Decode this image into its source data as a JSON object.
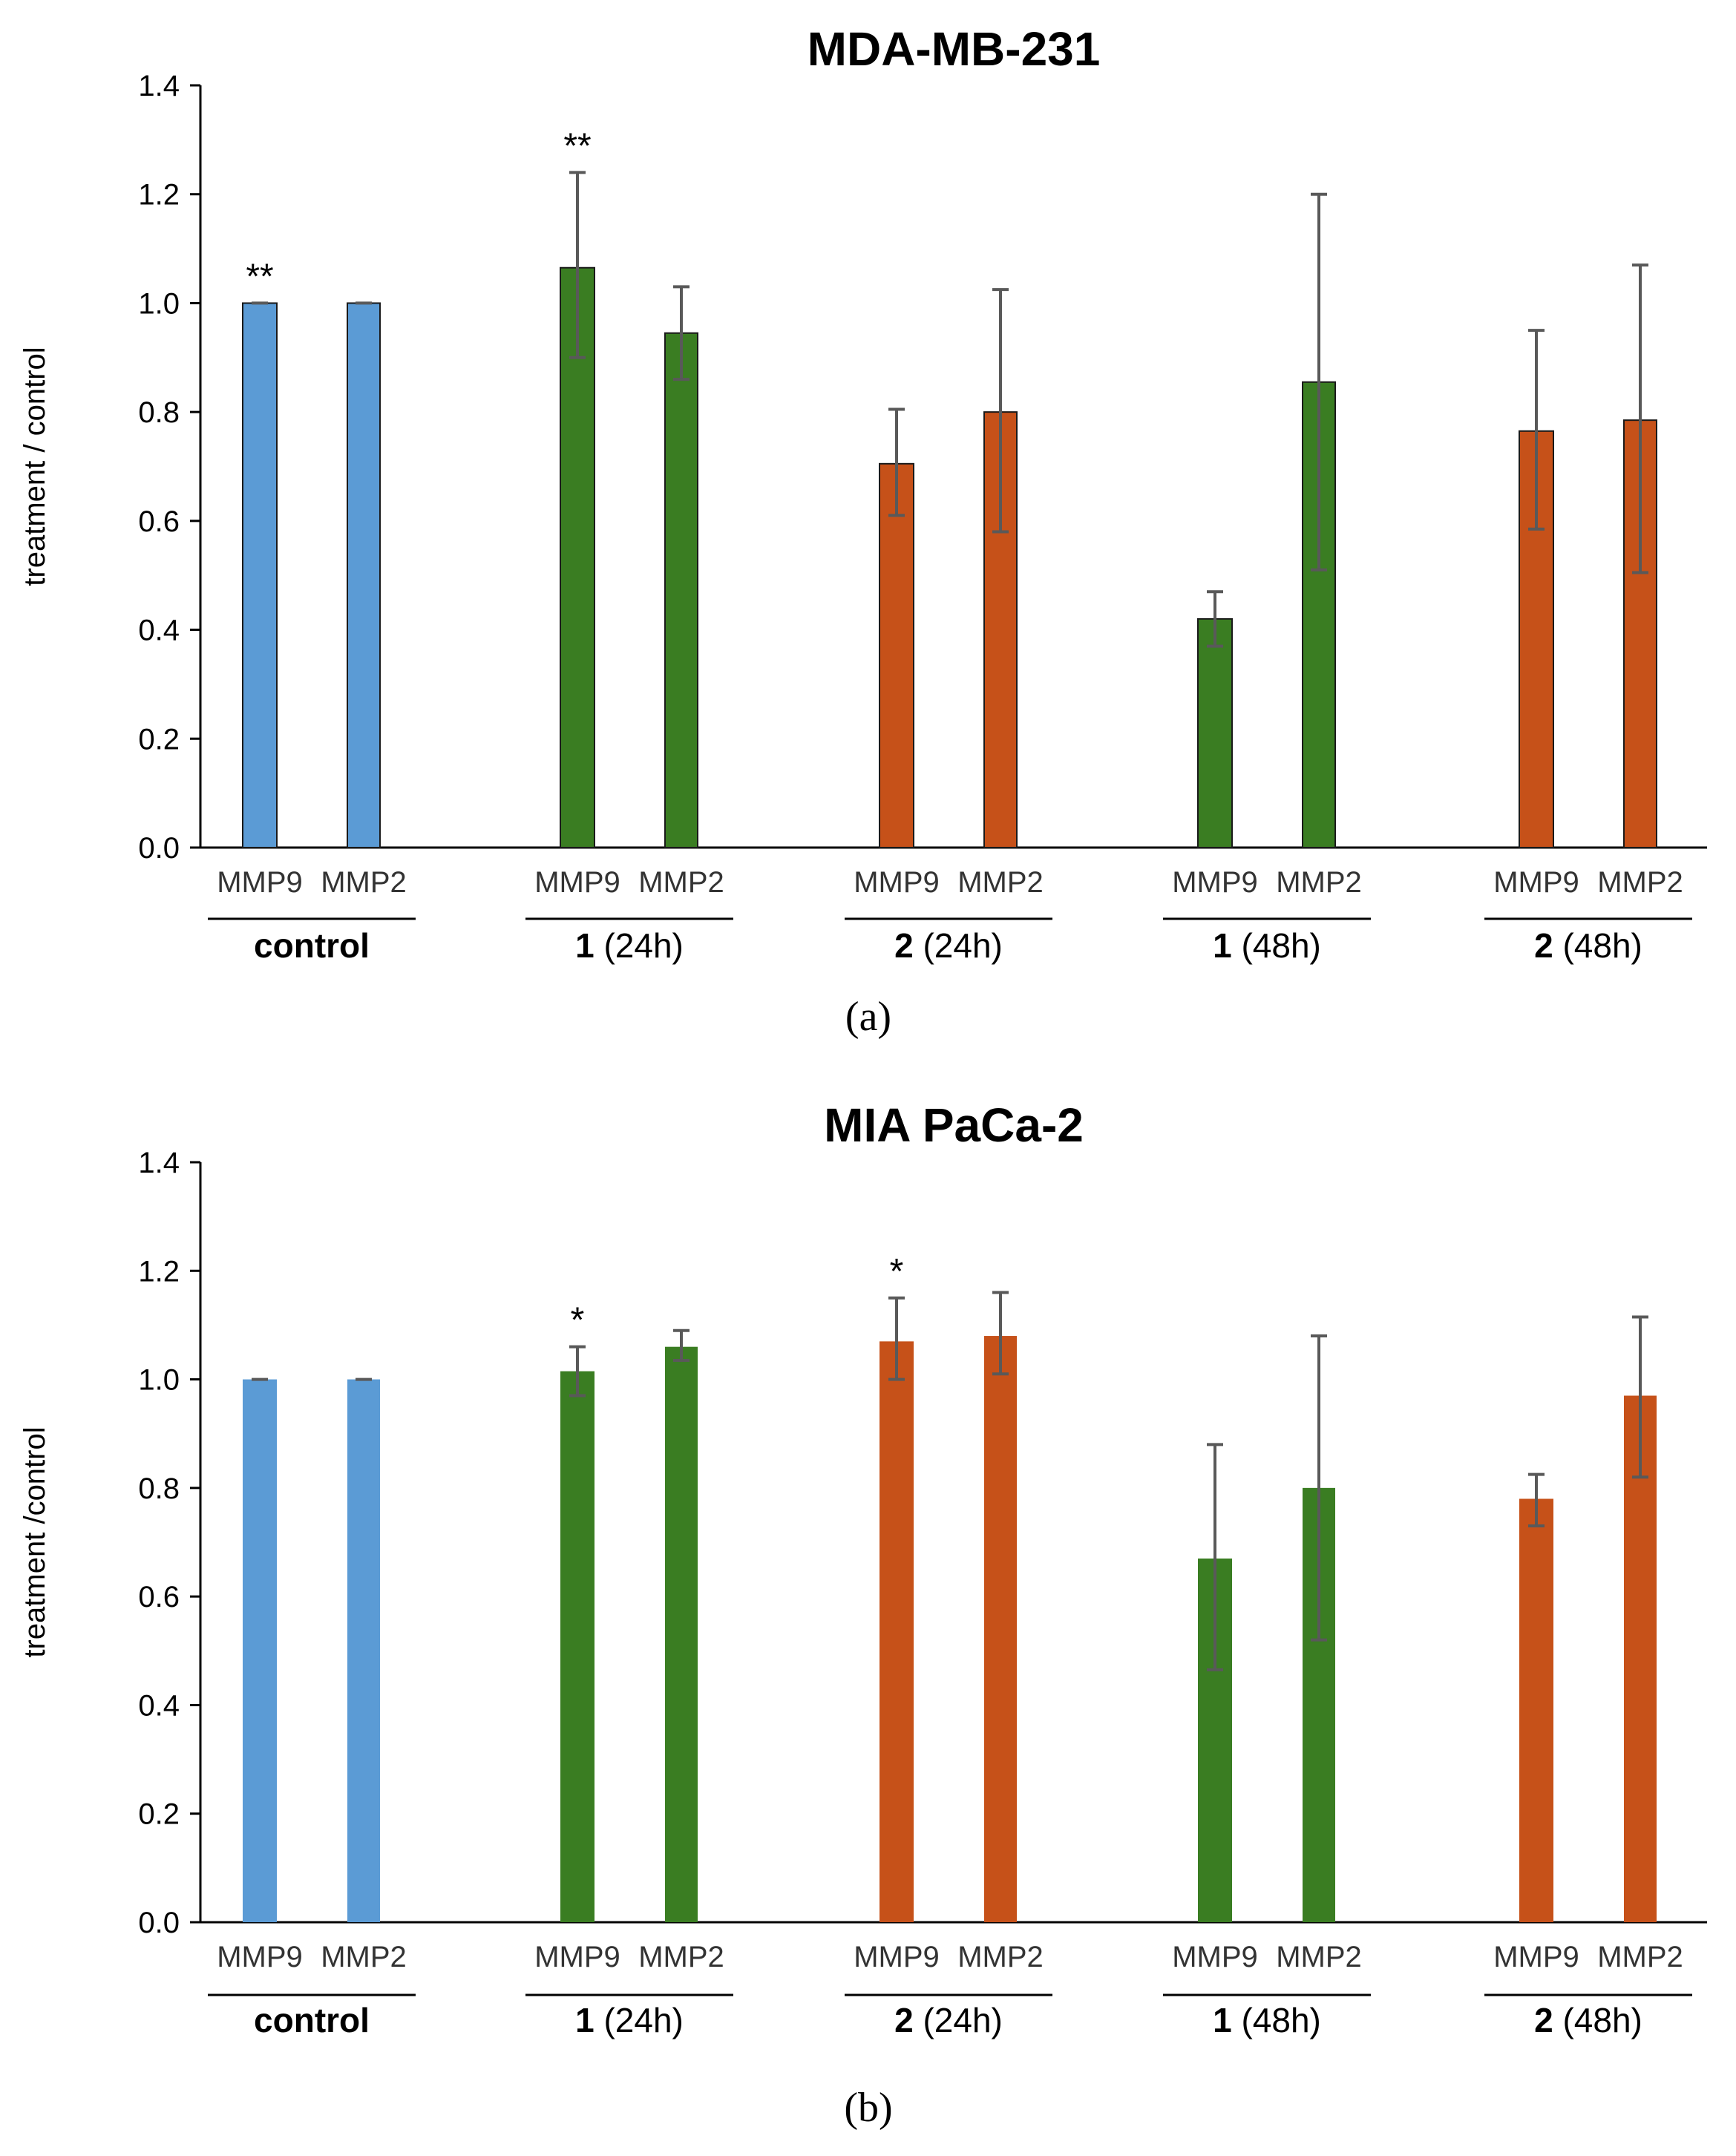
{
  "colors": {
    "control": "#5B9BD5",
    "compound1": "#3A7D22",
    "compound2": "#C65119",
    "error": "#595959",
    "axis": "#000000",
    "bar_outline": "#1a1a1a"
  },
  "chart_data": [
    {
      "type": "bar",
      "panel_label": "(a)",
      "title": "MDA-MB-231",
      "ylabel": "treatment / control",
      "ylim": [
        0,
        1.4
      ],
      "yticks": [
        "0.0",
        "0.2",
        "0.4",
        "0.6",
        "0.8",
        "1.0",
        "1.2",
        "1.4"
      ],
      "bars_outlined": true,
      "groups": [
        {
          "label_bold": "control",
          "label_rest": "",
          "color": "control",
          "bars": [
            {
              "label": "MMP9",
              "value": 1.0,
              "err_low": 1.0,
              "err_high": 1.0,
              "annotation": "**"
            },
            {
              "label": "MMP2",
              "value": 1.0,
              "err_low": 1.0,
              "err_high": 1.0,
              "annotation": ""
            }
          ]
        },
        {
          "label_bold": "1",
          "label_rest": " (24h)",
          "color": "compound1",
          "bars": [
            {
              "label": "MMP9",
              "value": 1.065,
              "err_low": 0.9,
              "err_high": 1.24,
              "annotation": "**"
            },
            {
              "label": "MMP2",
              "value": 0.945,
              "err_low": 0.86,
              "err_high": 1.03,
              "annotation": ""
            }
          ]
        },
        {
          "label_bold": "2",
          "label_rest": " (24h)",
          "color": "compound2",
          "bars": [
            {
              "label": "MMP9",
              "value": 0.705,
              "err_low": 0.61,
              "err_high": 0.805,
              "annotation": ""
            },
            {
              "label": "MMP2",
              "value": 0.8,
              "err_low": 0.58,
              "err_high": 1.025,
              "annotation": ""
            }
          ]
        },
        {
          "label_bold": "1",
          "label_rest": " (48h)",
          "color": "compound1",
          "bars": [
            {
              "label": "MMP9",
              "value": 0.42,
              "err_low": 0.37,
              "err_high": 0.47,
              "annotation": ""
            },
            {
              "label": "MMP2",
              "value": 0.855,
              "err_low": 0.51,
              "err_high": 1.2,
              "annotation": ""
            }
          ]
        },
        {
          "label_bold": "2",
          "label_rest": " (48h)",
          "color": "compound2",
          "bars": [
            {
              "label": "MMP9",
              "value": 0.765,
              "err_low": 0.585,
              "err_high": 0.95,
              "annotation": ""
            },
            {
              "label": "MMP2",
              "value": 0.785,
              "err_low": 0.505,
              "err_high": 1.07,
              "annotation": ""
            }
          ]
        }
      ]
    },
    {
      "type": "bar",
      "panel_label": "(b)",
      "title": "MIA PaCa-2",
      "ylabel": "treatment /control",
      "ylim": [
        0,
        1.4
      ],
      "yticks": [
        "0.0",
        "0.2",
        "0.4",
        "0.6",
        "0.8",
        "1.0",
        "1.2",
        "1.4"
      ],
      "bars_outlined": false,
      "groups": [
        {
          "label_bold": "control",
          "label_rest": "",
          "color": "control",
          "bars": [
            {
              "label": "MMP9",
              "value": 1.0,
              "err_low": 1.0,
              "err_high": 1.0,
              "annotation": ""
            },
            {
              "label": "MMP2",
              "value": 1.0,
              "err_low": 1.0,
              "err_high": 1.0,
              "annotation": ""
            }
          ]
        },
        {
          "label_bold": "1",
          "label_rest": " (24h)",
          "color": "compound1",
          "bars": [
            {
              "label": "MMP9",
              "value": 1.015,
              "err_low": 0.97,
              "err_high": 1.06,
              "annotation": "*"
            },
            {
              "label": "MMP2",
              "value": 1.06,
              "err_low": 1.035,
              "err_high": 1.09,
              "annotation": ""
            }
          ]
        },
        {
          "label_bold": "2",
          "label_rest": " (24h)",
          "color": "compound2",
          "bars": [
            {
              "label": "MMP9",
              "value": 1.07,
              "err_low": 1.0,
              "err_high": 1.15,
              "annotation": "*"
            },
            {
              "label": "MMP2",
              "value": 1.08,
              "err_low": 1.01,
              "err_high": 1.16,
              "annotation": ""
            }
          ]
        },
        {
          "label_bold": "1",
          "label_rest": " (48h)",
          "color": "compound1",
          "bars": [
            {
              "label": "MMP9",
              "value": 0.67,
              "err_low": 0.465,
              "err_high": 0.88,
              "annotation": ""
            },
            {
              "label": "MMP2",
              "value": 0.8,
              "err_low": 0.52,
              "err_high": 1.08,
              "annotation": ""
            }
          ]
        },
        {
          "label_bold": "2",
          "label_rest": " (48h)",
          "color": "compound2",
          "bars": [
            {
              "label": "MMP9",
              "value": 0.78,
              "err_low": 0.73,
              "err_high": 0.825,
              "annotation": ""
            },
            {
              "label": "MMP2",
              "value": 0.97,
              "err_low": 0.82,
              "err_high": 1.115,
              "annotation": ""
            }
          ]
        }
      ]
    }
  ]
}
